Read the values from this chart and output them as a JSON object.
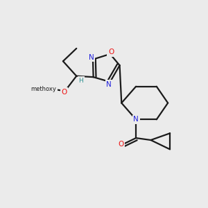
{
  "bg_color": "#ebebeb",
  "bond_color": "#1a1a1a",
  "N_color": "#2020dd",
  "O_color": "#ee1111",
  "H_color": "#2a9090",
  "figsize": [
    3.0,
    3.0
  ],
  "dpi": 100,
  "xlim": [
    0,
    10
  ],
  "ylim": [
    0,
    10
  ]
}
